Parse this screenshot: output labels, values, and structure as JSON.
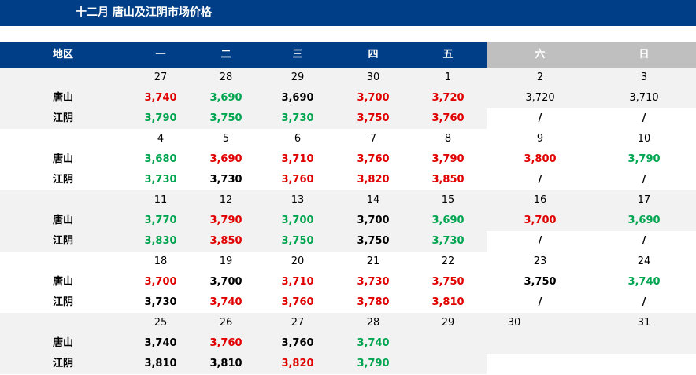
{
  "title": "十二月  唐山及江阴市场价格",
  "colors": {
    "header_blue": "#003f87",
    "weekend_gray": "#bfbfbf",
    "band_gray": "#f2f2f2",
    "up": "#e00000",
    "down": "#00a550",
    "flat": "#000000"
  },
  "header": {
    "region": "地区",
    "days": [
      "一",
      "二",
      "三",
      "四",
      "五",
      "六",
      "日"
    ]
  },
  "row_labels": {
    "tangshan": "唐山",
    "jiangyin": "江阴"
  },
  "weeks": [
    {
      "dates": [
        "27",
        "28",
        "29",
        "30",
        "1",
        "2",
        "3"
      ],
      "tangshan": [
        [
          "3,740",
          "red"
        ],
        [
          "3,690",
          "green"
        ],
        [
          "3,690",
          "black"
        ],
        [
          "3,700",
          "red"
        ],
        [
          "3,720",
          "red"
        ],
        [
          "3,720",
          "plain"
        ],
        [
          "3,710",
          "plain"
        ]
      ],
      "jiangyin": [
        [
          "3,790",
          "green"
        ],
        [
          "3,750",
          "green"
        ],
        [
          "3,730",
          "green"
        ],
        [
          "3,750",
          "red"
        ],
        [
          "3,760",
          "red"
        ],
        [
          "/",
          "slash"
        ],
        [
          "/",
          "slash"
        ]
      ]
    },
    {
      "dates": [
        "4",
        "5",
        "6",
        "7",
        "8",
        "9",
        "10"
      ],
      "tangshan": [
        [
          "3,680",
          "green"
        ],
        [
          "3,690",
          "red"
        ],
        [
          "3,710",
          "red"
        ],
        [
          "3,760",
          "red"
        ],
        [
          "3,790",
          "red"
        ],
        [
          "3,800",
          "red"
        ],
        [
          "3,790",
          "green"
        ]
      ],
      "jiangyin": [
        [
          "3,730",
          "green"
        ],
        [
          "3,730",
          "black"
        ],
        [
          "3,760",
          "red"
        ],
        [
          "3,820",
          "red"
        ],
        [
          "3,850",
          "red"
        ],
        [
          "/",
          "slash"
        ],
        [
          "/",
          "slash"
        ]
      ]
    },
    {
      "dates": [
        "11",
        "12",
        "13",
        "14",
        "15",
        "16",
        "17"
      ],
      "tangshan": [
        [
          "3,770",
          "green"
        ],
        [
          "3,790",
          "red"
        ],
        [
          "3,700",
          "green"
        ],
        [
          "3,700",
          "black"
        ],
        [
          "3,690",
          "green"
        ],
        [
          "3,700",
          "red"
        ],
        [
          "3,690",
          "green"
        ]
      ],
      "jiangyin": [
        [
          "3,830",
          "green"
        ],
        [
          "3,850",
          "red"
        ],
        [
          "3,750",
          "green"
        ],
        [
          "3,750",
          "black"
        ],
        [
          "3,730",
          "green"
        ],
        [
          "/",
          "slash"
        ],
        [
          "/",
          "slash"
        ]
      ]
    },
    {
      "dates": [
        "18",
        "19",
        "20",
        "21",
        "22",
        "23",
        "24"
      ],
      "tangshan": [
        [
          "3,700",
          "red"
        ],
        [
          "3,700",
          "black"
        ],
        [
          "3,710",
          "red"
        ],
        [
          "3,730",
          "red"
        ],
        [
          "3,750",
          "red"
        ],
        [
          "3,750",
          "black"
        ],
        [
          "3,740",
          "green"
        ]
      ],
      "jiangyin": [
        [
          "3,730",
          "black"
        ],
        [
          "3,740",
          "red"
        ],
        [
          "3,760",
          "red"
        ],
        [
          "3,780",
          "red"
        ],
        [
          "3,810",
          "red"
        ],
        [
          "/",
          "slash"
        ],
        [
          "/",
          "slash"
        ]
      ]
    },
    {
      "dates": [
        "25",
        "26",
        "27",
        "28",
        "29",
        "30",
        "31"
      ],
      "tangshan": [
        [
          "3,740",
          "black"
        ],
        [
          "3,760",
          "red"
        ],
        [
          "3,760",
          "black"
        ],
        [
          "3,740",
          "green"
        ],
        [
          "",
          ""
        ],
        [
          "",
          ""
        ],
        [
          "",
          ""
        ]
      ],
      "jiangyin": [
        [
          "3,810",
          "black"
        ],
        [
          "3,810",
          "black"
        ],
        [
          "3,820",
          "red"
        ],
        [
          "3,790",
          "green"
        ],
        [
          "",
          ""
        ],
        [
          "",
          ""
        ],
        [
          "",
          ""
        ]
      ]
    }
  ]
}
